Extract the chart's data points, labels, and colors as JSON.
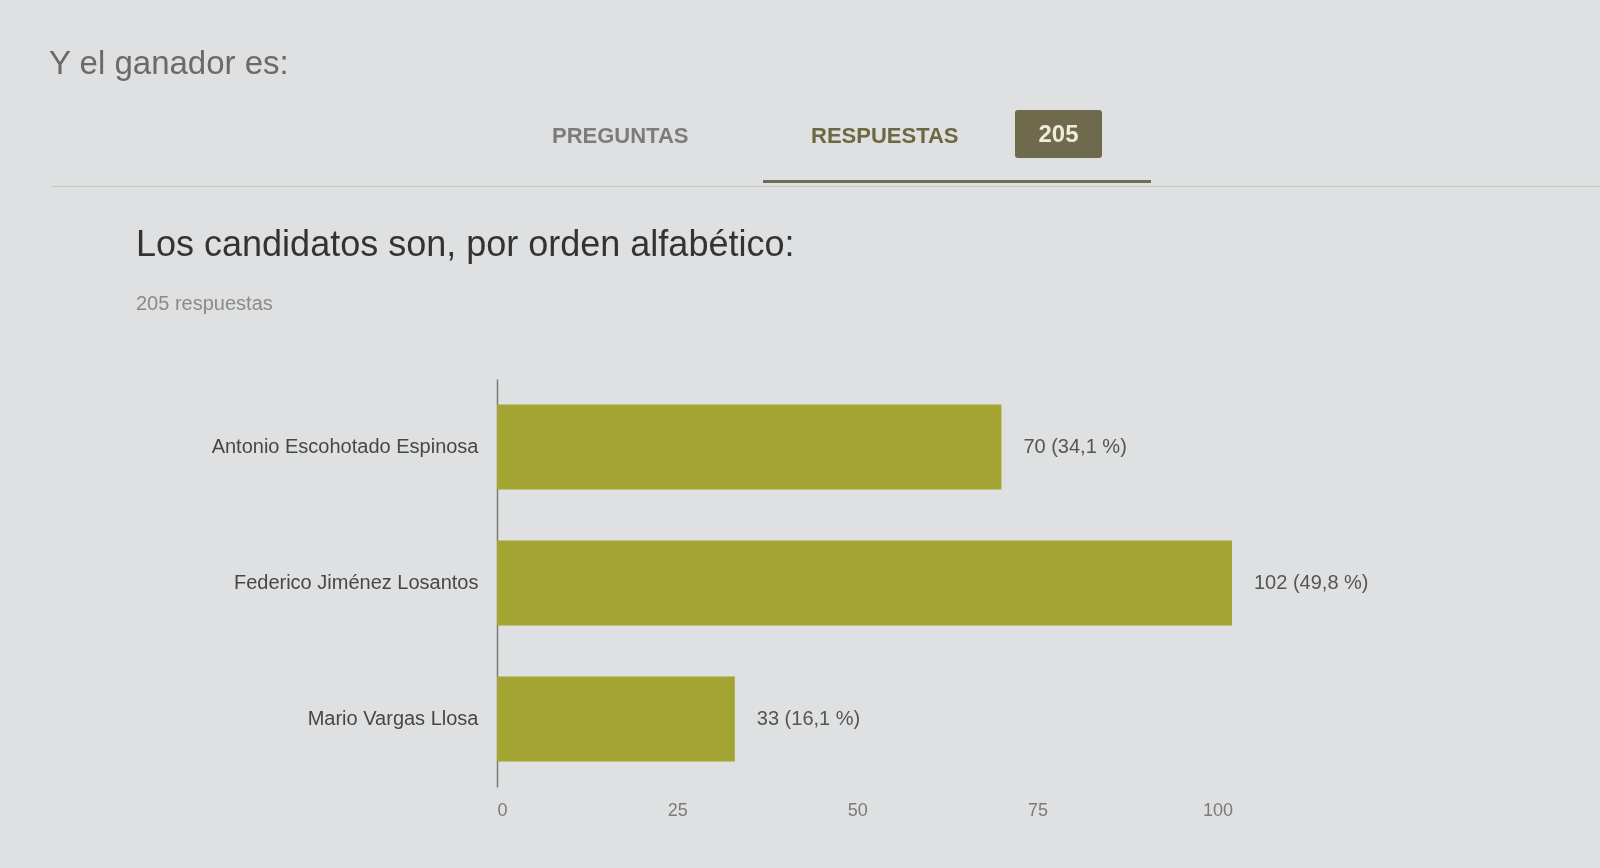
{
  "chart_data": {
    "type": "bar",
    "orientation": "horizontal",
    "title": "Los candidatos son, por orden alfabético:",
    "subtitle": "205 respuestas",
    "categories": [
      "Antonio Escohotado Espinosa",
      "Federico Jiménez Losantos",
      "Mario Vargas Llosa"
    ],
    "values": [
      70,
      102,
      33
    ],
    "value_labels": [
      "70 (34,1 %)",
      "102 (49,8 %)",
      "33 (16,1 %)"
    ],
    "color": "#a3a431",
    "xlim": [
      0,
      102
    ],
    "xticks": [
      0,
      25,
      50,
      75,
      100
    ],
    "annotations": [
      "Y el ganador es:",
      "PREGUNTAS",
      "RESPUESTAS",
      "205"
    ]
  }
}
